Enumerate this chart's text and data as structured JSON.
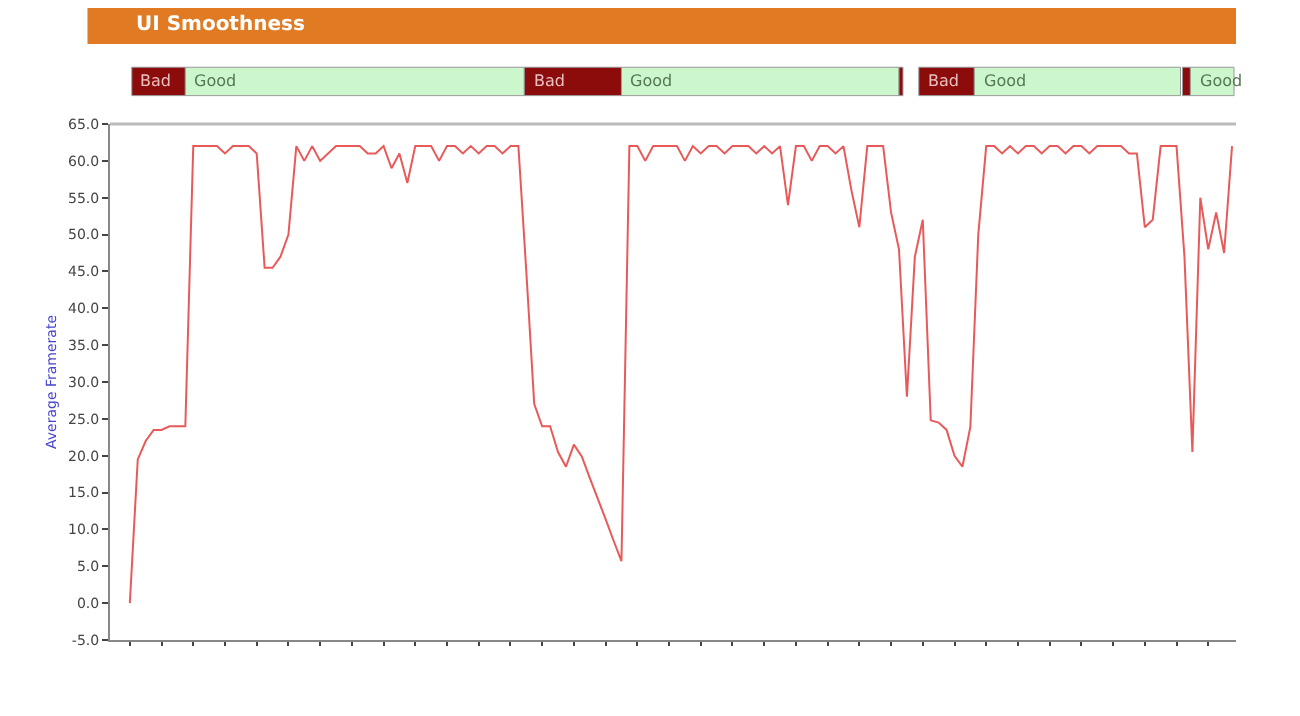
{
  "chart_data": {
    "type": "line",
    "title": "UI Smoothness",
    "ylabel": "Average Framerate",
    "categories": [
      null,
      null,
      null,
      null,
      null,
      null,
      null,
      null,
      null,
      null,
      null,
      null,
      null,
      null,
      null,
      null,
      null,
      null,
      null,
      null,
      null,
      null,
      null,
      null,
      null,
      null,
      null,
      null,
      null,
      null,
      null,
      null,
      null,
      null,
      null,
      null,
      null,
      null,
      null,
      null,
      null,
      null,
      null,
      null,
      null,
      null,
      null,
      null,
      null,
      null,
      null,
      null,
      null,
      null,
      null,
      null,
      null,
      null,
      null,
      null,
      null,
      null,
      null,
      null,
      null,
      null,
      null,
      null,
      null,
      null,
      null,
      null,
      null,
      null,
      null,
      null,
      null,
      null,
      null,
      null,
      null,
      null,
      null,
      null,
      null,
      null,
      null,
      null,
      null,
      null,
      null,
      null,
      null,
      null,
      null,
      null,
      null,
      null,
      null,
      null,
      null,
      null,
      null,
      null,
      null,
      null,
      null,
      null,
      null,
      null,
      null,
      null,
      null,
      null,
      null,
      null,
      null,
      null,
      null,
      null,
      null,
      null,
      null,
      null,
      null,
      null,
      null,
      null,
      null,
      null,
      null,
      null,
      null,
      null,
      null,
      null,
      null,
      null,
      null,
      null
    ],
    "series": [
      {
        "color": "#e85a5a",
        "values": [
          0,
          19.5,
          22,
          23.5,
          23.5,
          24,
          24,
          24,
          62,
          62,
          62,
          62,
          61,
          62,
          62,
          62,
          61,
          45.5,
          45.5,
          47,
          50,
          62,
          60,
          62,
          60,
          61,
          62,
          62,
          62,
          62,
          61,
          61,
          62,
          59,
          61,
          57,
          62,
          62,
          62,
          60,
          62,
          62,
          61,
          62,
          61,
          62,
          62,
          61,
          62,
          62,
          45,
          27,
          24,
          24,
          20.5,
          18.5,
          21.5,
          19.9,
          17,
          14.2,
          11.4,
          8.5,
          5.7,
          62,
          62,
          60,
          62,
          62,
          62,
          62,
          60,
          62,
          61,
          62,
          62,
          61,
          62,
          62,
          62,
          61,
          62,
          61,
          62,
          54,
          62,
          62,
          60,
          62,
          62,
          61,
          62,
          56,
          51,
          62,
          62,
          62,
          53,
          48,
          28,
          47,
          52,
          24.8,
          24.5,
          23.5,
          20,
          18.5,
          23.9,
          50,
          62,
          62,
          61,
          62,
          61,
          62,
          62,
          61,
          62,
          62,
          61,
          62,
          62,
          61,
          62,
          62,
          62,
          62,
          61,
          61,
          51,
          52,
          62,
          62,
          62,
          47,
          20.5,
          55,
          48,
          53,
          47.5,
          62
        ]
      }
    ],
    "ylim": [
      -5,
      65
    ],
    "yticks": [
      {
        "value": -5,
        "label": "-5.0"
      },
      {
        "value": 0,
        "label": "0.0"
      },
      {
        "value": 5,
        "label": "5.0"
      },
      {
        "value": 10,
        "label": "10.0"
      },
      {
        "value": 15,
        "label": "15.0"
      },
      {
        "value": 20,
        "label": "20.0"
      },
      {
        "value": 25,
        "label": "25.0"
      },
      {
        "value": 30,
        "label": "30.0"
      },
      {
        "value": 35,
        "label": "35.0"
      },
      {
        "value": 40,
        "label": "40.0"
      },
      {
        "value": 45,
        "label": "45.0"
      },
      {
        "value": 50,
        "label": "50.0"
      },
      {
        "value": 55,
        "label": "55.0"
      },
      {
        "value": 60,
        "label": "60.0"
      },
      {
        "value": 65,
        "label": "65.0"
      }
    ],
    "annotations": [
      "Bad",
      "Good",
      "Bad",
      "Good",
      "Bad",
      "Good",
      "Good"
    ],
    "tick_labels": "y",
    "marker": "none",
    "line_style": "solid"
  }
}
